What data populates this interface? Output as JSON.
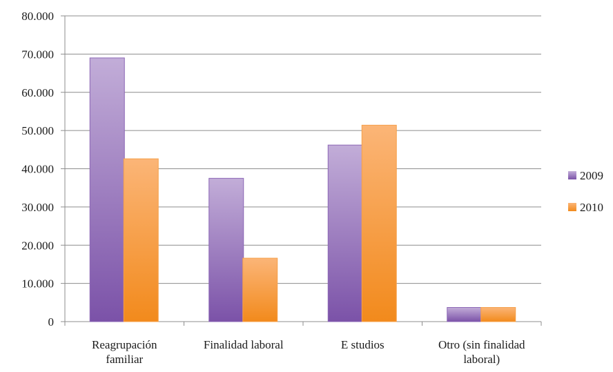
{
  "chart_data": {
    "type": "bar",
    "categories": [
      [
        "Reagrupación",
        "familiar"
      ],
      [
        "Finalidad laboral"
      ],
      [
        "E studios"
      ],
      [
        "Otro (sin finalidad",
        "laboral)"
      ]
    ],
    "series": [
      {
        "name": "2009",
        "values": [
          69000,
          37500,
          46200,
          3700
        ],
        "color_top": "#c2add8",
        "color_bottom": "#7b52a8",
        "stroke": "#8b66b5"
      },
      {
        "name": "2010",
        "values": [
          42600,
          16600,
          51400,
          3700
        ],
        "color_top": "#fbb577",
        "color_bottom": "#f28a1c",
        "stroke": "#f5a04a"
      }
    ],
    "yticks": [
      "0",
      "10.000",
      "20.000",
      "30.000",
      "40.000",
      "50.000",
      "60.000",
      "70.000",
      "80.000"
    ],
    "ylim": [
      0,
      80000
    ],
    "ystep": 10000,
    "grid": true,
    "legend_position": "right",
    "title": "",
    "xlabel": "",
    "ylabel": ""
  }
}
